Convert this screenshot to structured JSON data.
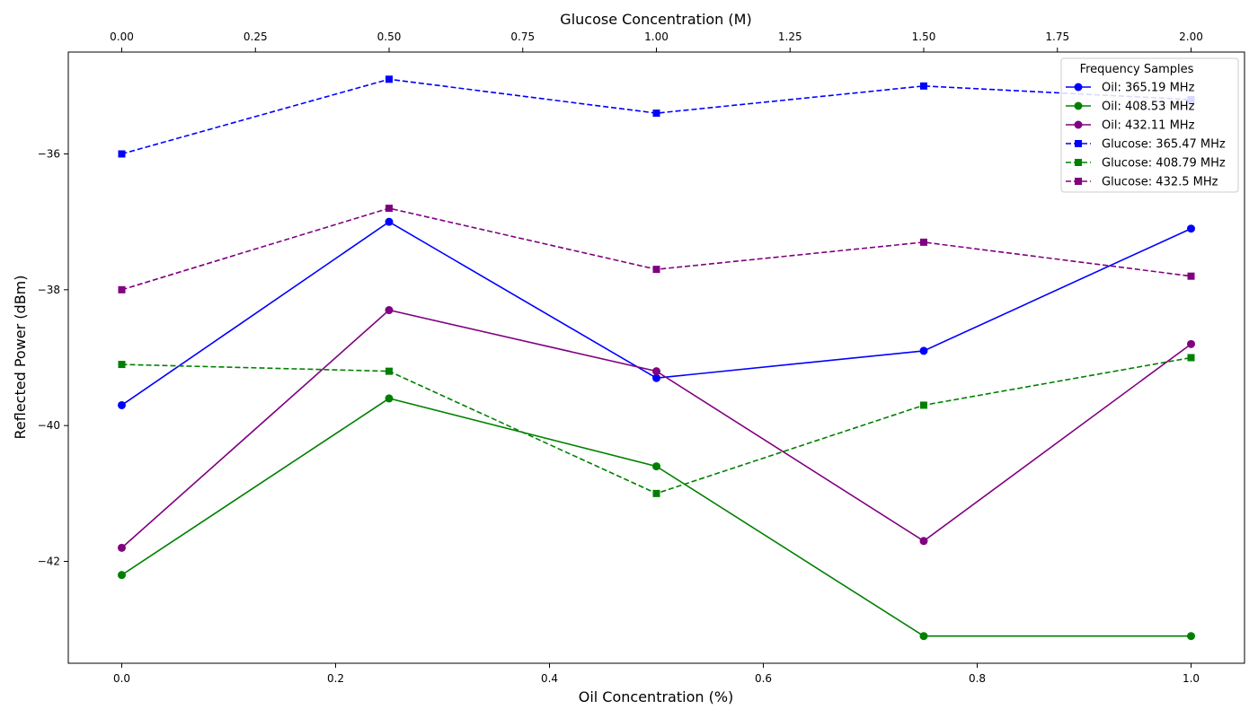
{
  "chart_data": {
    "type": "line",
    "xlabel": "Oil Concentration (%)",
    "x2label": "Glucose Concentration (M)",
    "ylabel": "Reflected Power (dBm)",
    "xlim": [
      -0.05,
      1.05
    ],
    "x2lim": [
      -0.1,
      2.1
    ],
    "ylim": [
      -43.5,
      -34.5
    ],
    "x_ticks": [
      "0.0",
      "0.2",
      "0.4",
      "0.6",
      "0.8",
      "1.0"
    ],
    "x2_ticks": [
      "0.00",
      "0.25",
      "0.50",
      "0.75",
      "1.00",
      "1.25",
      "1.50",
      "1.75",
      "2.00"
    ],
    "y_ticks": [
      "−36",
      "−38",
      "−40",
      "−42"
    ],
    "grid": false,
    "legend": {
      "title": "Frequency Samples",
      "placement": "top-right"
    },
    "series": [
      {
        "name": "Oil: 365.19 MHz",
        "axis": "bottom",
        "color": "#0000ff",
        "marker": "circle",
        "linestyle": "solid",
        "x": [
          0.0,
          0.25,
          0.5,
          0.75,
          1.0
        ],
        "y": [
          -39.7,
          -37.0,
          -39.3,
          -38.9,
          -37.1
        ]
      },
      {
        "name": "Oil: 408.53 MHz",
        "axis": "bottom",
        "color": "#008000",
        "marker": "circle",
        "linestyle": "solid",
        "x": [
          0.0,
          0.25,
          0.5,
          0.75,
          1.0
        ],
        "y": [
          -42.2,
          -39.6,
          -40.6,
          -43.1,
          -43.1
        ]
      },
      {
        "name": "Oil: 432.11 MHz",
        "axis": "bottom",
        "color": "#800080",
        "marker": "circle",
        "linestyle": "solid",
        "x": [
          0.0,
          0.25,
          0.5,
          0.75,
          1.0
        ],
        "y": [
          -41.8,
          -38.3,
          -39.2,
          -41.7,
          -38.8
        ]
      },
      {
        "name": "Glucose: 365.47 MHz",
        "axis": "top",
        "color": "#0000ff",
        "marker": "square",
        "linestyle": "dashed",
        "x": [
          0.0,
          0.5,
          1.0,
          1.5,
          2.0
        ],
        "y": [
          -36.0,
          -34.9,
          -35.4,
          -35.0,
          -35.2
        ]
      },
      {
        "name": "Glucose: 408.79 MHz",
        "axis": "top",
        "color": "#008000",
        "marker": "square",
        "linestyle": "dashed",
        "x": [
          0.0,
          0.5,
          1.0,
          1.5,
          2.0
        ],
        "y": [
          -39.1,
          -39.2,
          -41.0,
          -39.7,
          -39.0
        ]
      },
      {
        "name": "Glucose: 432.5 MHz",
        "axis": "top",
        "color": "#800080",
        "marker": "square",
        "linestyle": "dashed",
        "x": [
          0.0,
          0.5,
          1.0,
          1.5,
          2.0
        ],
        "y": [
          -38.0,
          -36.8,
          -37.7,
          -37.3,
          -37.8
        ]
      }
    ]
  }
}
